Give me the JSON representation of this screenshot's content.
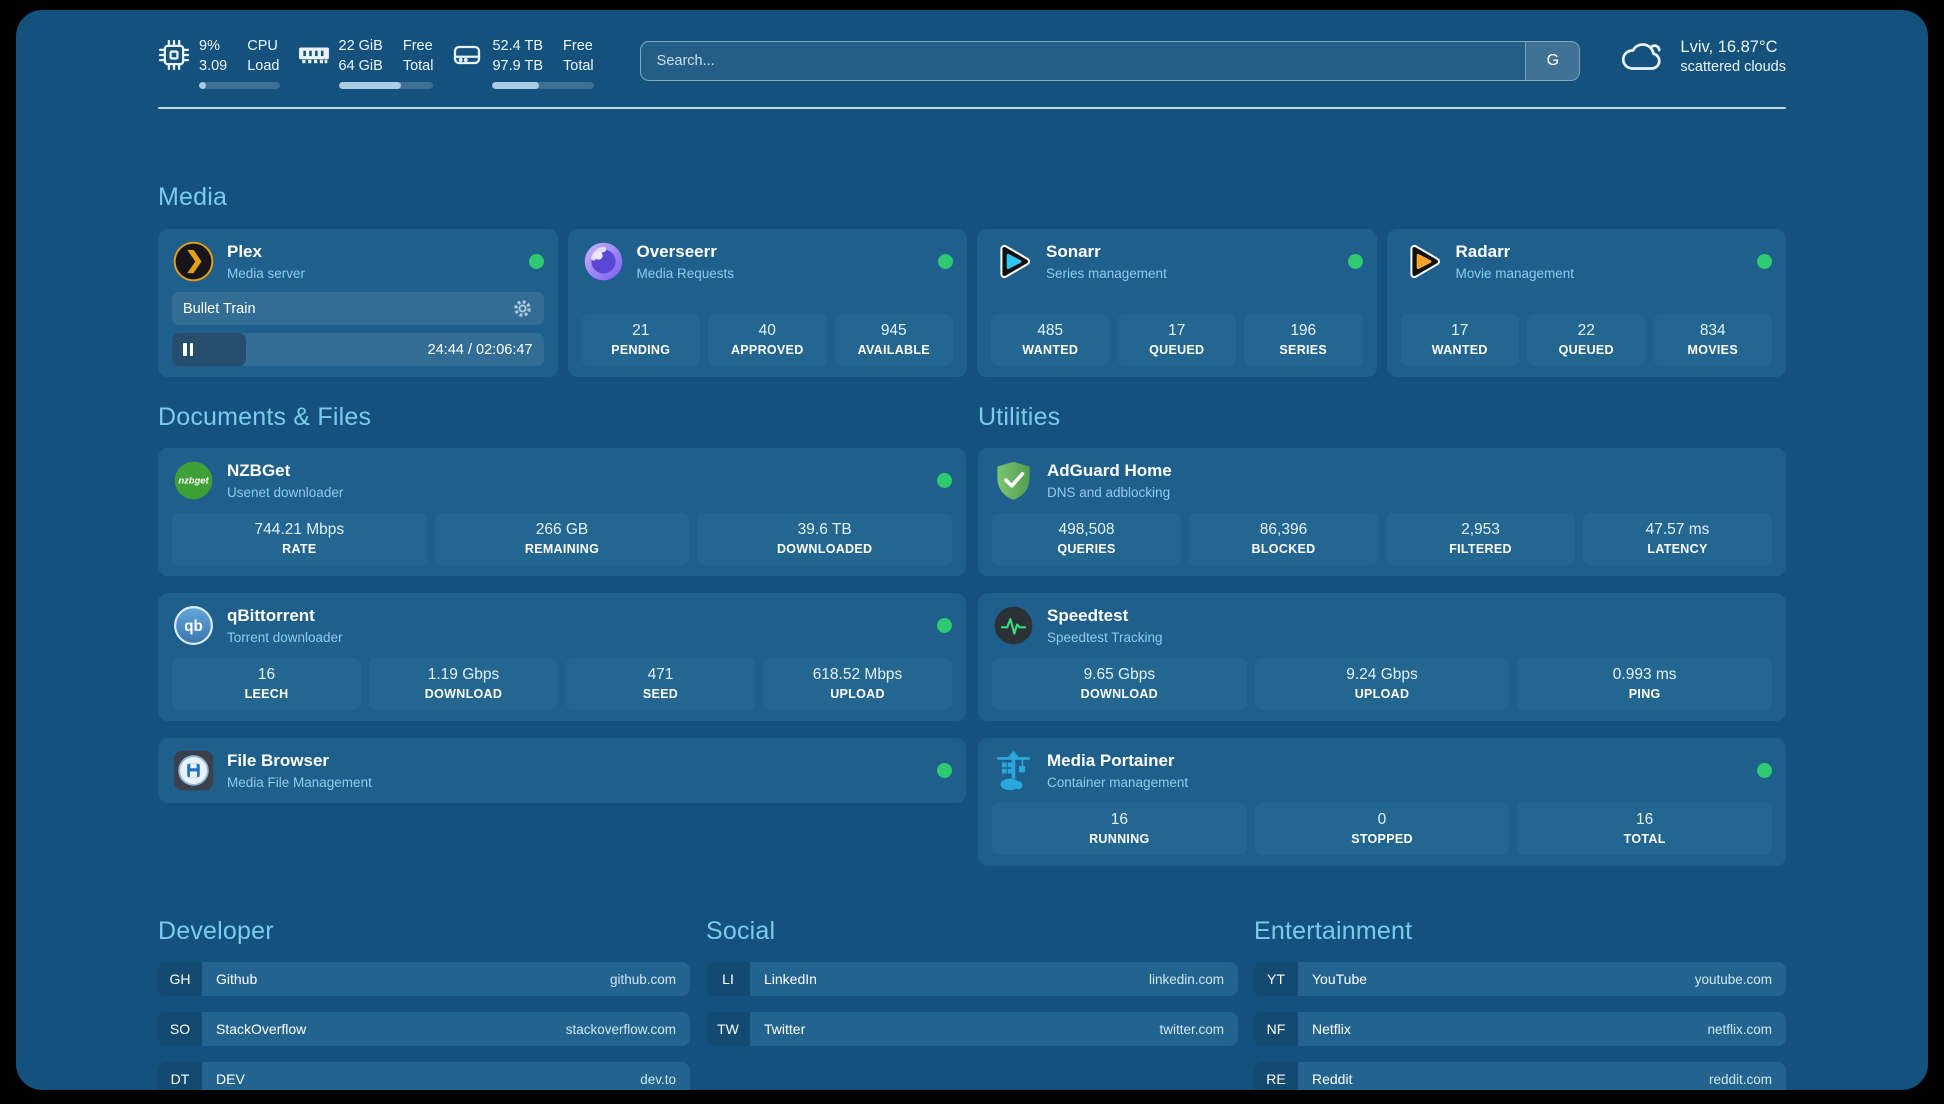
{
  "colors": {
    "page_bg": "#14527D",
    "card_bg": "#1E5F8C",
    "box_bg": "#236690",
    "badge_bg": "#134A72",
    "row_bg": "#22648F",
    "accent": "#7BCBEE",
    "subtitle": "#90CBEC",
    "green": "#2EC971",
    "bar_fill": "#A9CDE4",
    "bar_track": "#3F6F94"
  },
  "topbar": {
    "cpu": {
      "values": [
        "9%",
        "3.09"
      ],
      "labels": [
        "CPU",
        "Load"
      ],
      "progress": 9
    },
    "memory": {
      "values": [
        "22 GiB",
        "64 GiB"
      ],
      "labels": [
        "Free",
        "Total"
      ],
      "progress": 66
    },
    "disk": {
      "values": [
        "52.4 TB",
        "97.9 TB"
      ],
      "labels": [
        "Free",
        "Total"
      ],
      "progress": 46
    },
    "search": {
      "placeholder": "Search...",
      "button_label": "G"
    },
    "weather": {
      "location": "Lviv, 16.87°C",
      "condition": "scattered clouds"
    }
  },
  "sections": {
    "media": {
      "title": "Media"
    },
    "documents": {
      "title": "Documents & Files"
    },
    "utilities": {
      "title": "Utilities"
    },
    "developer": {
      "title": "Developer"
    },
    "social": {
      "title": "Social"
    },
    "entertainment": {
      "title": "Entertainment"
    }
  },
  "apps": {
    "plex": {
      "name": "Plex",
      "description": "Media server",
      "status": "online",
      "now_playing": "Bullet Train",
      "time": "24:44 / 02:06:47",
      "progress": 20
    },
    "overseerr": {
      "name": "Overseerr",
      "description": "Media Requests",
      "status": "online",
      "stats": [
        {
          "value": "21",
          "label": "PENDING"
        },
        {
          "value": "40",
          "label": "APPROVED"
        },
        {
          "value": "945",
          "label": "AVAILABLE"
        }
      ]
    },
    "sonarr": {
      "name": "Sonarr",
      "description": "Series management",
      "status": "online",
      "stats": [
        {
          "value": "485",
          "label": "WANTED"
        },
        {
          "value": "17",
          "label": "QUEUED"
        },
        {
          "value": "196",
          "label": "SERIES"
        }
      ]
    },
    "radarr": {
      "name": "Radarr",
      "description": "Movie management",
      "status": "online",
      "stats": [
        {
          "value": "17",
          "label": "WANTED"
        },
        {
          "value": "22",
          "label": "QUEUED"
        },
        {
          "value": "834",
          "label": "MOVIES"
        }
      ]
    },
    "nzbget": {
      "name": "NZBGet",
      "description": "Usenet downloader",
      "status": "online",
      "icon_text": "nzbget",
      "stats": [
        {
          "value": "744.21 Mbps",
          "label": "RATE"
        },
        {
          "value": "266 GB",
          "label": "REMAINING"
        },
        {
          "value": "39.6 TB",
          "label": "DOWNLOADED"
        }
      ]
    },
    "qbittorrent": {
      "name": "qBittorrent",
      "description": "Torrent downloader",
      "status": "online",
      "icon_text": "qb",
      "stats": [
        {
          "value": "16",
          "label": "LEECH"
        },
        {
          "value": "1.19 Gbps",
          "label": "DOWNLOAD"
        },
        {
          "value": "471",
          "label": "SEED"
        },
        {
          "value": "618.52 Mbps",
          "label": "UPLOAD"
        }
      ]
    },
    "filebrowser": {
      "name": "File Browser",
      "description": "Media File Management",
      "status": "online"
    },
    "adguard": {
      "name": "AdGuard Home",
      "description": "DNS and adblocking",
      "stats": [
        {
          "value": "498,508",
          "label": "QUERIES"
        },
        {
          "value": "86,396",
          "label": "BLOCKED"
        },
        {
          "value": "2,953",
          "label": "FILTERED"
        },
        {
          "value": "47.57 ms",
          "label": "LATENCY"
        }
      ]
    },
    "speedtest": {
      "name": "Speedtest",
      "description": "Speedtest Tracking",
      "stats": [
        {
          "value": "9.65 Gbps",
          "label": "DOWNLOAD"
        },
        {
          "value": "9.24 Gbps",
          "label": "UPLOAD"
        },
        {
          "value": "0.993 ms",
          "label": "PING"
        }
      ]
    },
    "portainer": {
      "name": "Media Portainer",
      "description": "Container management",
      "status": "online",
      "stats": [
        {
          "value": "16",
          "label": "RUNNING"
        },
        {
          "value": "0",
          "label": "STOPPED"
        },
        {
          "value": "16",
          "label": "TOTAL"
        }
      ]
    }
  },
  "links": {
    "developer": [
      {
        "abbr": "GH",
        "name": "Github",
        "url": "github.com"
      },
      {
        "abbr": "SO",
        "name": "StackOverflow",
        "url": "stackoverflow.com"
      },
      {
        "abbr": "DT",
        "name": "DEV",
        "url": "dev.to"
      }
    ],
    "social": [
      {
        "abbr": "LI",
        "name": "LinkedIn",
        "url": "linkedin.com"
      },
      {
        "abbr": "TW",
        "name": "Twitter",
        "url": "twitter.com"
      }
    ],
    "entertainment": [
      {
        "abbr": "YT",
        "name": "YouTube",
        "url": "youtube.com"
      },
      {
        "abbr": "NF",
        "name": "Netflix",
        "url": "netflix.com"
      },
      {
        "abbr": "RE",
        "name": "Reddit",
        "url": "reddit.com"
      }
    ]
  }
}
